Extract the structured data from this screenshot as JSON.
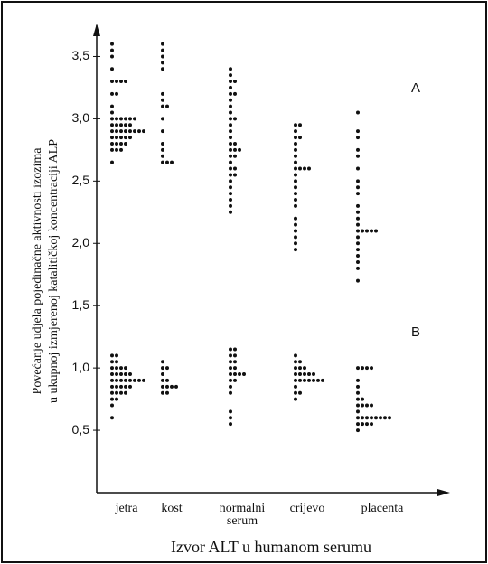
{
  "chart_data": {
    "type": "strip",
    "ylabel": [
      "Povećanje udjela pojedinačne aktivnosti izozima",
      "u ukupnoj izmjerenoj katalitičkoj koncentraciji ALP"
    ],
    "xlabel": "Izvor ALT u humanom serumu",
    "categories": [
      "jetra",
      "kost",
      "normalni serum",
      "crijevo",
      "placenta"
    ],
    "ylim": [
      0,
      3.75
    ],
    "yticks": [
      {
        "value": 0.5,
        "label": "0,5"
      },
      {
        "value": 1.0,
        "label": "1,0"
      },
      {
        "value": 1.5,
        "label": "1,5"
      },
      {
        "value": 2.0,
        "label": "2,0"
      },
      {
        "value": 2.5,
        "label": "2,5"
      },
      {
        "value": 3.0,
        "label": "3,0"
      },
      {
        "value": 3.5,
        "label": "3,5"
      }
    ],
    "color": "#111111",
    "series": [
      {
        "name": "A",
        "values": [
          [
            3.6,
            3.55,
            3.5,
            3.4,
            3.3,
            3.3,
            3.3,
            3.3,
            3.2,
            3.2,
            3.1,
            3.05,
            3.0,
            3.0,
            3.0,
            3.0,
            3.0,
            3.0,
            2.95,
            2.95,
            2.95,
            2.95,
            2.95,
            2.9,
            2.9,
            2.9,
            2.9,
            2.9,
            2.9,
            2.9,
            2.9,
            2.85,
            2.85,
            2.85,
            2.85,
            2.85,
            2.8,
            2.8,
            2.8,
            2.8,
            2.75,
            2.75,
            2.75,
            2.65
          ],
          [
            3.6,
            3.55,
            3.5,
            3.45,
            3.4,
            3.2,
            3.15,
            3.1,
            3.1,
            3.0,
            2.9,
            2.8,
            2.75,
            2.7,
            2.65,
            2.65,
            2.65
          ],
          [
            3.4,
            3.35,
            3.3,
            3.3,
            3.25,
            3.2,
            3.2,
            3.15,
            3.1,
            3.05,
            3.0,
            3.0,
            2.95,
            2.9,
            2.85,
            2.8,
            2.8,
            2.75,
            2.75,
            2.75,
            2.7,
            2.7,
            2.65,
            2.6,
            2.6,
            2.55,
            2.55,
            2.5,
            2.45,
            2.4,
            2.35,
            2.3,
            2.25
          ],
          [
            2.95,
            2.95,
            2.9,
            2.85,
            2.85,
            2.8,
            2.75,
            2.7,
            2.65,
            2.6,
            2.6,
            2.6,
            2.6,
            2.55,
            2.5,
            2.45,
            2.4,
            2.35,
            2.3,
            2.2,
            2.15,
            2.1,
            2.05,
            2.0,
            1.95
          ],
          [
            3.05,
            2.9,
            2.85,
            2.75,
            2.7,
            2.6,
            2.5,
            2.45,
            2.4,
            2.3,
            2.25,
            2.2,
            2.15,
            2.1,
            2.1,
            2.1,
            2.1,
            2.1,
            2.05,
            2.0,
            1.95,
            1.9,
            1.85,
            1.8,
            1.7
          ]
        ]
      },
      {
        "name": "B",
        "values": [
          [
            1.1,
            1.1,
            1.05,
            1.05,
            1.0,
            1.0,
            1.0,
            1.0,
            0.95,
            0.95,
            0.95,
            0.95,
            0.95,
            0.9,
            0.9,
            0.9,
            0.9,
            0.9,
            0.9,
            0.9,
            0.9,
            0.85,
            0.85,
            0.85,
            0.85,
            0.85,
            0.8,
            0.8,
            0.8,
            0.8,
            0.75,
            0.75,
            0.7,
            0.6
          ],
          [
            1.05,
            1.0,
            1.0,
            0.95,
            0.9,
            0.9,
            0.85,
            0.85,
            0.85,
            0.85,
            0.8,
            0.8
          ],
          [
            1.15,
            1.15,
            1.1,
            1.1,
            1.05,
            1.05,
            1.0,
            1.0,
            0.95,
            0.95,
            0.95,
            0.95,
            0.9,
            0.9,
            0.85,
            0.8,
            0.65,
            0.6,
            0.55
          ],
          [
            1.1,
            1.05,
            1.05,
            1.0,
            1.0,
            1.0,
            0.95,
            0.95,
            0.95,
            0.95,
            0.95,
            0.9,
            0.9,
            0.9,
            0.9,
            0.9,
            0.9,
            0.9,
            0.85,
            0.8,
            0.8,
            0.75
          ],
          [
            1.0,
            1.0,
            1.0,
            1.0,
            0.9,
            0.85,
            0.8,
            0.75,
            0.75,
            0.7,
            0.7,
            0.7,
            0.7,
            0.65,
            0.6,
            0.6,
            0.6,
            0.6,
            0.6,
            0.6,
            0.6,
            0.6,
            0.55,
            0.55,
            0.55,
            0.55,
            0.5
          ]
        ]
      }
    ]
  }
}
